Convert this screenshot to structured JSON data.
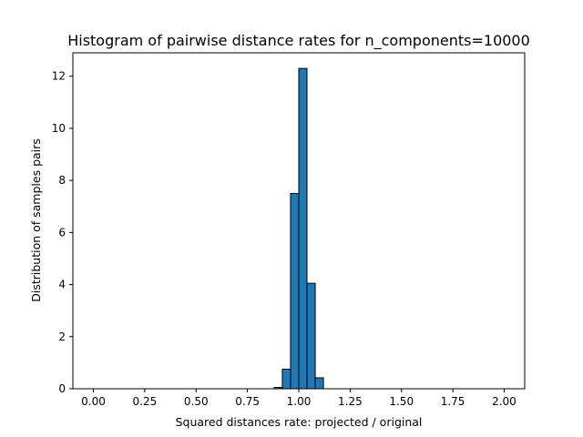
{
  "chart_data": {
    "type": "bar",
    "title": "Histogram of pairwise distance rates for n_components=10000",
    "xlabel": "Squared distances rate: projected / original",
    "ylabel": "Distribution of samples pairs",
    "xlim": [
      -0.1,
      2.1
    ],
    "ylim": [
      0,
      12.9
    ],
    "xticks": [
      0.0,
      0.25,
      0.5,
      0.75,
      1.0,
      1.25,
      1.5,
      1.75,
      2.0
    ],
    "xtick_labels": [
      "0.00",
      "0.25",
      "0.50",
      "0.75",
      "1.00",
      "1.25",
      "1.50",
      "1.75",
      "2.00"
    ],
    "yticks": [
      0,
      2,
      4,
      6,
      8,
      10,
      12
    ],
    "ytick_labels": [
      "0",
      "2",
      "4",
      "6",
      "8",
      "10",
      "12"
    ],
    "bin_width": 0.04,
    "bins": [
      {
        "x0": 0.88,
        "x1": 0.92,
        "value": 0.05
      },
      {
        "x0": 0.92,
        "x1": 0.96,
        "value": 0.75
      },
      {
        "x0": 0.96,
        "x1": 1.0,
        "value": 7.5
      },
      {
        "x0": 1.0,
        "x1": 1.04,
        "value": 12.3
      },
      {
        "x0": 1.04,
        "x1": 1.08,
        "value": 4.05
      },
      {
        "x0": 1.08,
        "x1": 1.12,
        "value": 0.42
      }
    ],
    "bar_color": "#1f77b4",
    "edge_color": "#000000",
    "grid": false,
    "legend": null
  }
}
